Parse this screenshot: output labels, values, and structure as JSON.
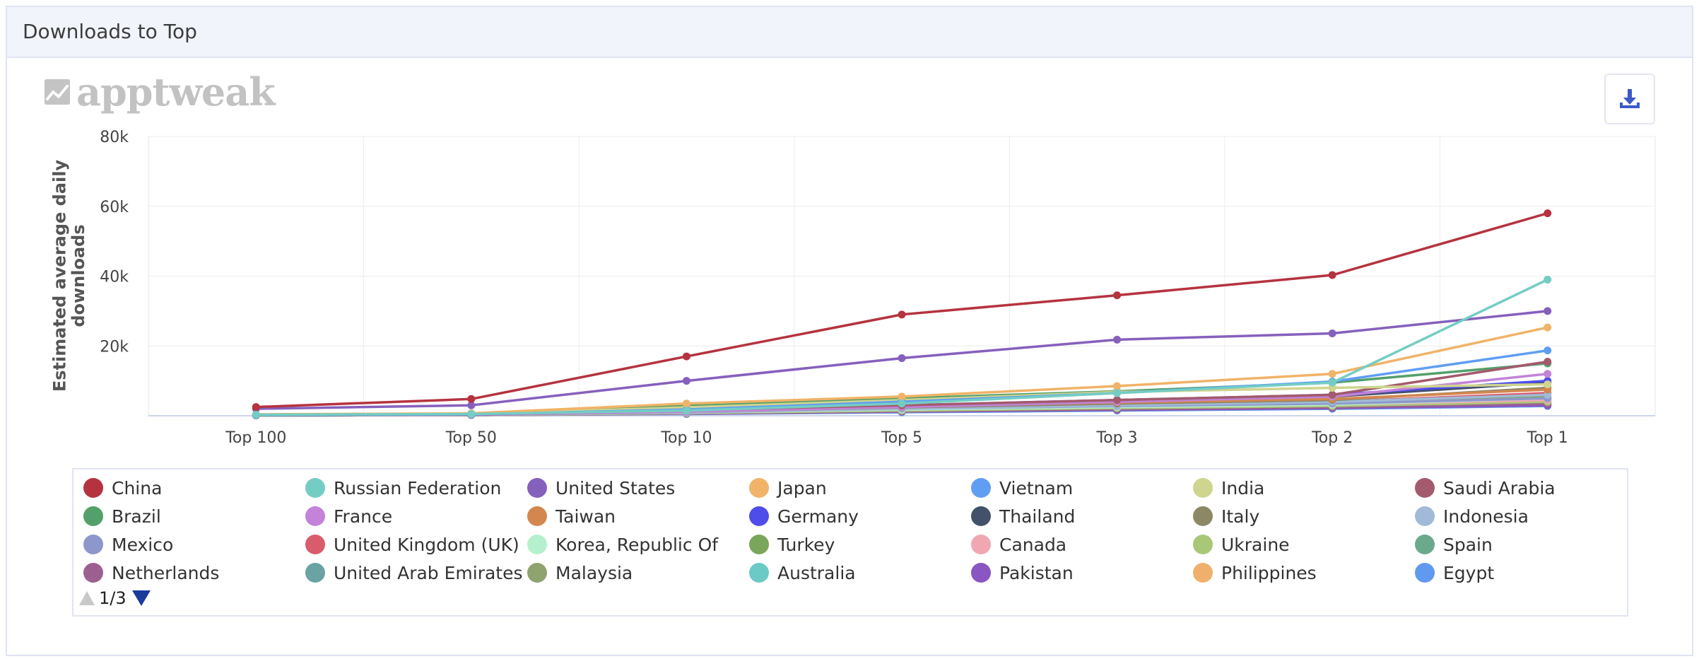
{
  "panel": {
    "title": "Downloads to Top"
  },
  "logo": {
    "text": "apptweak"
  },
  "download_button": {
    "icon": "download-icon",
    "color": "#3b59c8"
  },
  "chart_data": {
    "type": "line",
    "title": "",
    "xlabel": "",
    "ylabel": "Estimated average daily downloads",
    "x": [
      "Top 100",
      "Top 50",
      "Top 10",
      "Top 5",
      "Top 3",
      "Top 2",
      "Top 1"
    ],
    "ylim": [
      0,
      80000
    ],
    "yticks": [
      20000,
      40000,
      60000,
      80000
    ],
    "ytick_labels": [
      "20k",
      "40k",
      "60k",
      "80k"
    ],
    "grid": true,
    "series": [
      {
        "name": "China",
        "color": "#b5333f",
        "values": [
          2500,
          4800,
          17000,
          29000,
          34500,
          40300,
          58000
        ]
      },
      {
        "name": "Russian Federation",
        "color": "#74cdc4",
        "values": [
          300,
          500,
          1500,
          3500,
          6500,
          9500,
          39000
        ]
      },
      {
        "name": "United States",
        "color": "#8660bd",
        "values": [
          2000,
          3000,
          10000,
          16500,
          21800,
          23600,
          30000
        ]
      },
      {
        "name": "Japan",
        "color": "#f0b368",
        "values": [
          400,
          700,
          3500,
          5500,
          8500,
          12000,
          25300
        ]
      },
      {
        "name": "Vietnam",
        "color": "#5f9ef2",
        "values": [
          200,
          400,
          1800,
          4000,
          6500,
          9800,
          18700
        ]
      },
      {
        "name": "India",
        "color": "#cfd48e",
        "values": [
          300,
          500,
          2400,
          4500,
          6800,
          8000,
          9000
        ]
      },
      {
        "name": "Saudi Arabia",
        "color": "#a35a6c",
        "values": [
          200,
          400,
          1700,
          3000,
          4500,
          6000,
          15500
        ]
      },
      {
        "name": "Brazil",
        "color": "#53a06a",
        "values": [
          200,
          500,
          2800,
          5000,
          7000,
          9500,
          15000
        ]
      },
      {
        "name": "France",
        "color": "#c283d8",
        "values": [
          200,
          300,
          1200,
          2500,
          4000,
          5500,
          12000
        ]
      },
      {
        "name": "Taiwan",
        "color": "#d3874f",
        "values": [
          200,
          300,
          1500,
          2800,
          3800,
          4800,
          7500
        ]
      },
      {
        "name": "Germany",
        "color": "#4f4dea",
        "values": [
          200,
          300,
          1500,
          3000,
          4500,
          6000,
          10000
        ]
      },
      {
        "name": "Thailand",
        "color": "#44516a",
        "values": [
          200,
          300,
          1400,
          2800,
          4000,
          5500,
          9500
        ]
      },
      {
        "name": "Italy",
        "color": "#8c8866",
        "values": [
          150,
          250,
          1200,
          2400,
          3500,
          4500,
          8000
        ]
      },
      {
        "name": "Indonesia",
        "color": "#a0bad7",
        "values": [
          150,
          250,
          1100,
          2000,
          3000,
          4000,
          6000
        ]
      },
      {
        "name": "Mexico",
        "color": "#8d97cb",
        "values": [
          150,
          250,
          1000,
          2000,
          2800,
          3500,
          5000
        ]
      },
      {
        "name": "United Kingdom (UK)",
        "color": "#d95c6c",
        "values": [
          150,
          250,
          1200,
          2400,
          3200,
          4000,
          6500
        ]
      },
      {
        "name": "Korea, Republic Of",
        "color": "#b4f0cd",
        "values": [
          150,
          250,
          900,
          1800,
          2500,
          3200,
          5000
        ]
      },
      {
        "name": "Turkey",
        "color": "#7aa65c",
        "values": [
          150,
          250,
          1000,
          2000,
          2800,
          3500,
          5500
        ]
      },
      {
        "name": "Canada",
        "color": "#f0a7b2",
        "values": [
          150,
          250,
          900,
          1800,
          2500,
          3200,
          4500
        ]
      },
      {
        "name": "Ukraine",
        "color": "#a8c878",
        "values": [
          100,
          200,
          800,
          1500,
          2200,
          2800,
          4000
        ]
      },
      {
        "name": "Spain",
        "color": "#6aa98b",
        "values": [
          150,
          250,
          1000,
          2000,
          2700,
          3300,
          5000
        ]
      },
      {
        "name": "Netherlands",
        "color": "#9c6090",
        "values": [
          100,
          200,
          700,
          1300,
          1900,
          2400,
          3500
        ]
      },
      {
        "name": "United Arab Emirates",
        "color": "#69a3a3",
        "values": [
          100,
          200,
          700,
          1400,
          2000,
          2600,
          3800
        ]
      },
      {
        "name": "Malaysia",
        "color": "#8ea36e",
        "values": [
          100,
          200,
          700,
          1300,
          1900,
          2500,
          3500
        ]
      },
      {
        "name": "Australia",
        "color": "#6ccac6",
        "values": [
          100,
          200,
          800,
          1600,
          2300,
          2900,
          4200
        ]
      },
      {
        "name": "Pakistan",
        "color": "#8a56c1",
        "values": [
          100,
          200,
          600,
          1200,
          1700,
          2200,
          3000
        ]
      },
      {
        "name": "Philippines",
        "color": "#efb06c",
        "values": [
          100,
          200,
          600,
          1200,
          1800,
          2300,
          3200
        ]
      },
      {
        "name": "Egypt",
        "color": "#5f9af0",
        "values": [
          100,
          200,
          500,
          1000,
          1500,
          2000,
          2800
        ]
      }
    ],
    "legend": {
      "placement": "bottom",
      "columns": 7
    }
  },
  "legend_pager": {
    "text": "1/3",
    "up_icon": "triangle-up-icon",
    "down_icon": "triangle-down-icon"
  }
}
